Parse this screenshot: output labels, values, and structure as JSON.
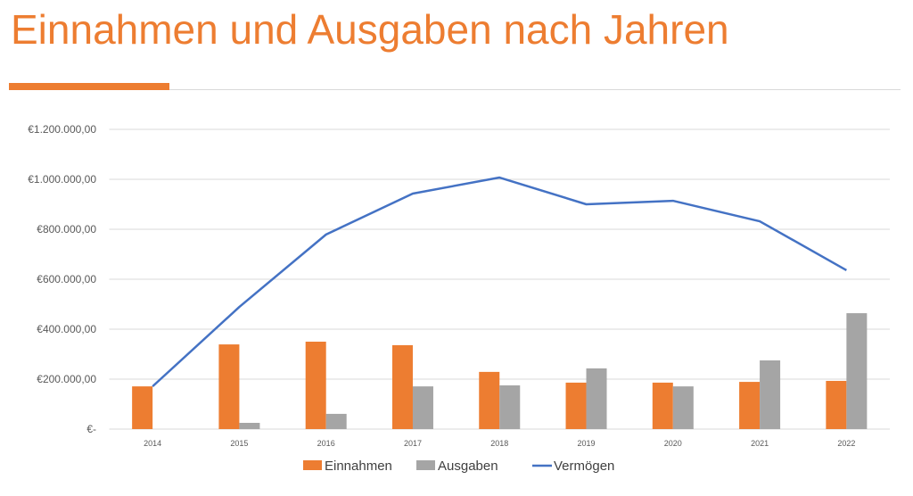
{
  "title": "Einnahmen und Ausgaben nach Jahren",
  "chart_data": {
    "type": "bar",
    "title": "",
    "xlabel": "",
    "ylabel": "",
    "categories": [
      "2014",
      "2015",
      "2016",
      "2017",
      "2018",
      "2019",
      "2020",
      "2021",
      "2022"
    ],
    "ylim": [
      0,
      1200000
    ],
    "yticks": [
      0,
      200000,
      400000,
      600000,
      800000,
      1000000,
      1200000
    ],
    "ytick_labels": [
      "€-",
      "€200.000,00",
      "€400.000,00",
      "€600.000,00",
      "€800.000,00",
      "€1.000.000,00",
      "€1.200.000,00"
    ],
    "grid": true,
    "legend": "bottom",
    "series": [
      {
        "name": "Einnahmen",
        "type": "bar",
        "color": "#ED7D31",
        "values": [
          171000,
          339000,
          350000,
          336000,
          229000,
          186000,
          186000,
          189000,
          193000
        ]
      },
      {
        "name": "Ausgaben",
        "type": "bar",
        "color": "#A5A5A5",
        "values": [
          0,
          25000,
          61000,
          171000,
          175000,
          243000,
          171000,
          275000,
          464000
        ]
      },
      {
        "name": "Vermögen",
        "type": "line",
        "color": "#4472C4",
        "values": [
          171000,
          489000,
          779000,
          943000,
          1007000,
          900000,
          914000,
          832000,
          636000
        ]
      }
    ]
  }
}
